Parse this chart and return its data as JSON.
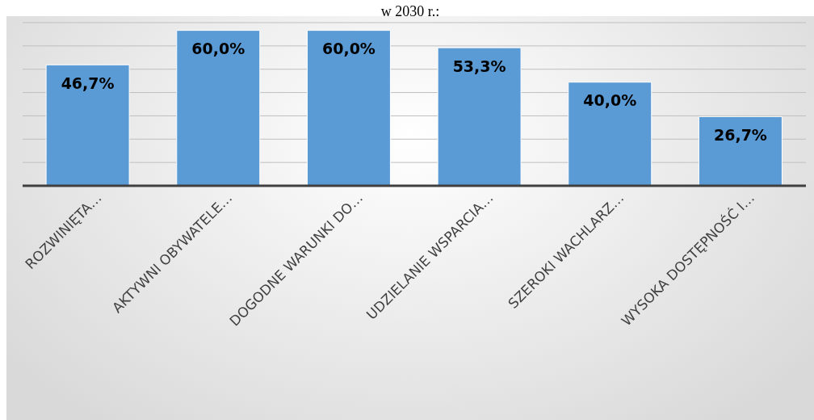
{
  "chart_data": {
    "type": "bar",
    "title": "w 2030 r.:",
    "categories": [
      "ROZWINIĘTA…",
      "AKTYWNI OBYWATELE…",
      "DOGODNE WARUNKI DO…",
      "UDZIELANIE WSPARCIA…",
      "SZEROKI WACHLARZ…",
      "WYSOKA DOSTĘPNOŚĆ I…"
    ],
    "values": [
      46.7,
      60.0,
      60.0,
      53.3,
      40.0,
      26.7
    ],
    "value_labels": [
      "46,7%",
      "60,0%",
      "60,0%",
      "53,3%",
      "40,0%",
      "26,7%"
    ],
    "color": "#5b9bd5",
    "grid": "y",
    "tick_labels": "x"
  }
}
